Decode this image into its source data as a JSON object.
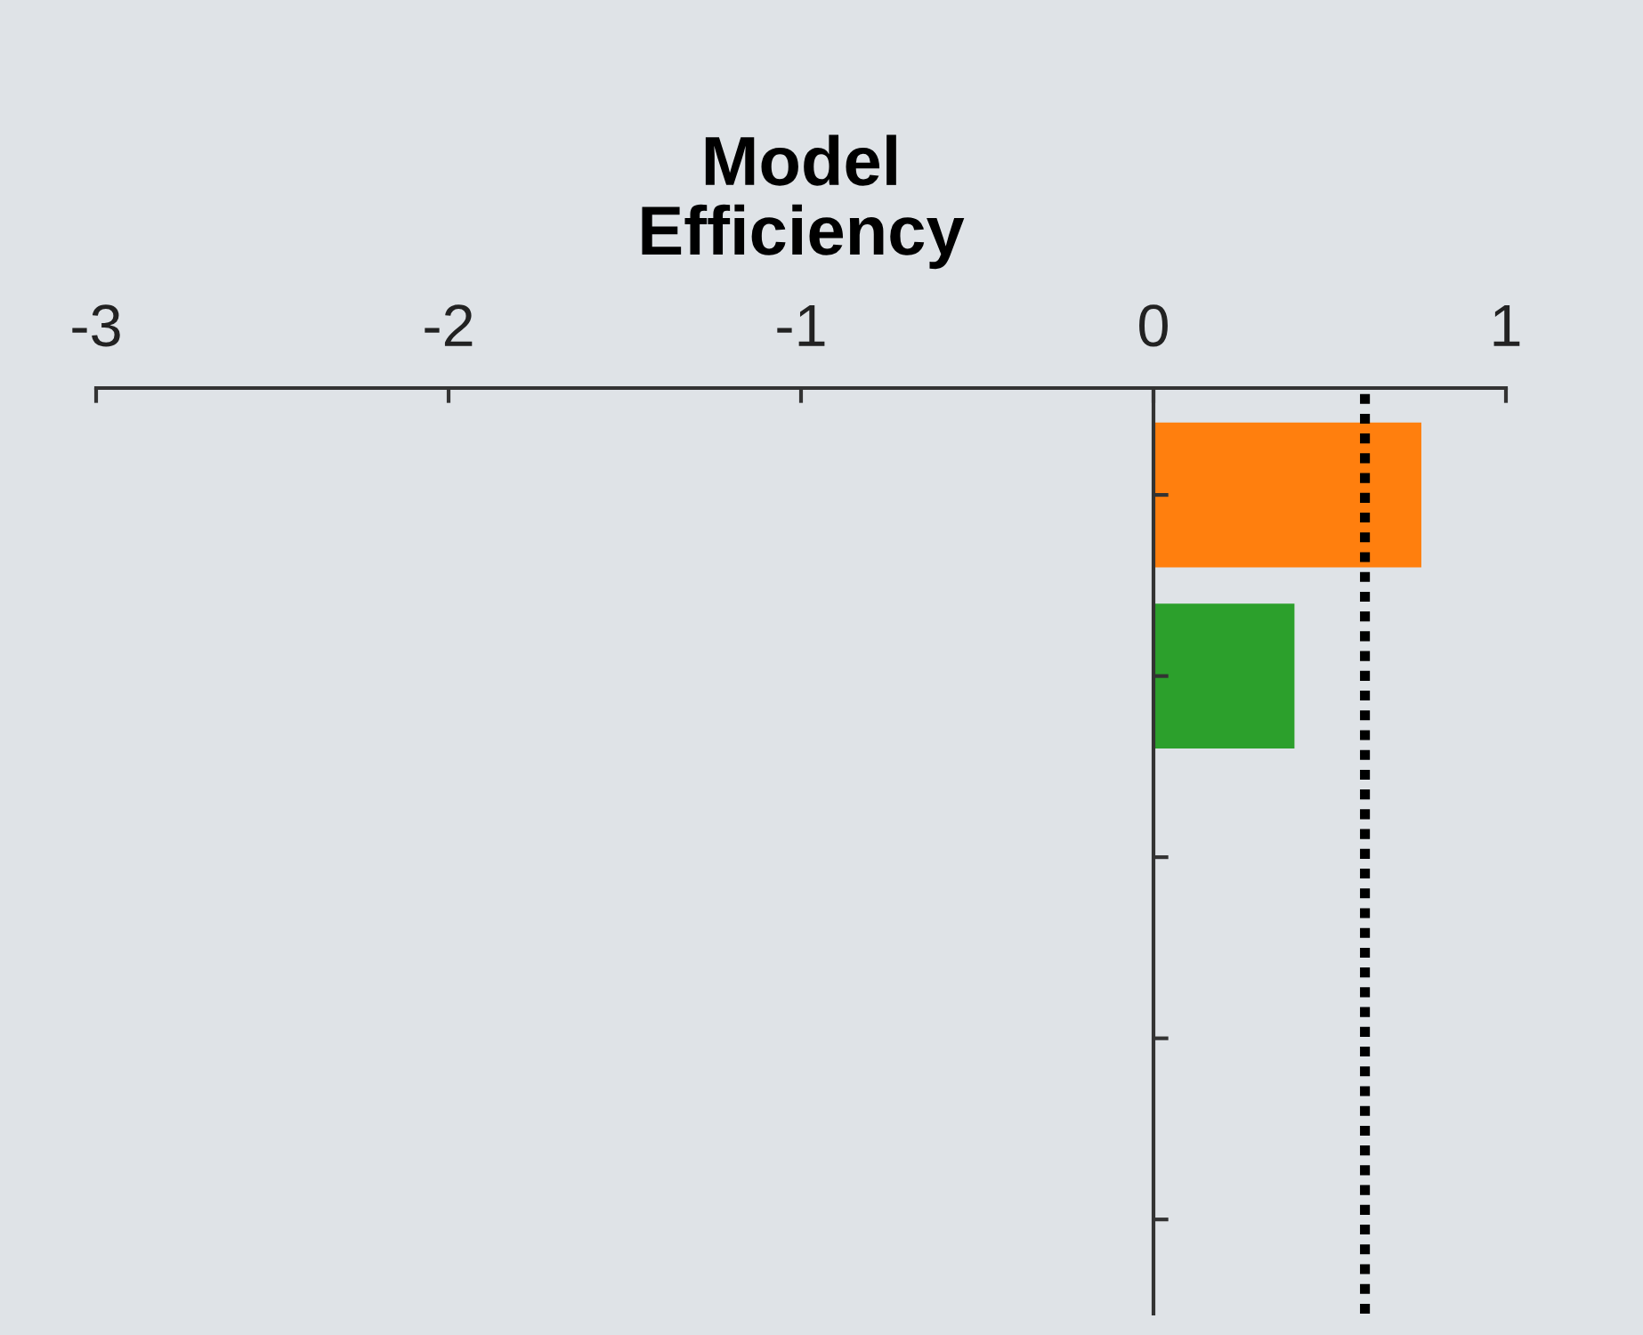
{
  "chart_data": {
    "type": "bar",
    "orientation": "horizontal",
    "title": "Model\nEfficiency",
    "categories": [
      null,
      null,
      null,
      null,
      null
    ],
    "values": [
      0.76,
      0.4,
      null,
      null,
      null
    ],
    "colors": [
      "#ff7f0e",
      "#2ca02c",
      "#ff7f0e",
      "#2ca02c",
      "#ff7f0e"
    ],
    "xlim": [
      -3,
      1
    ],
    "xticks": [
      -3,
      -2,
      -1,
      0,
      1
    ],
    "ref_lines": [
      {
        "axis": "x",
        "value": 0.6,
        "color": "#000000",
        "line_style": "dotted"
      }
    ]
  }
}
